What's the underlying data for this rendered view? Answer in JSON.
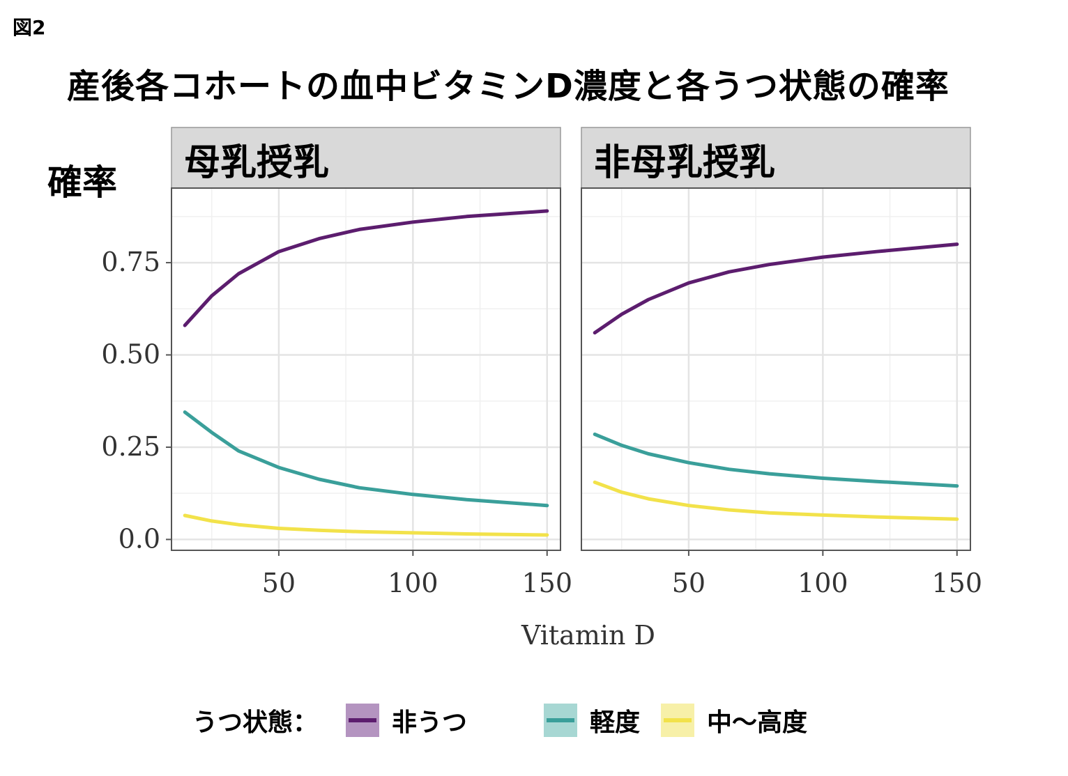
{
  "figure_label": "図2",
  "title": "産後各コホートの血中ビタミンD濃度と各うつ状態の確率",
  "chart_data": {
    "type": "line",
    "ylabel": "確率",
    "xlabel": "Vitamin D",
    "xlim": [
      10,
      155
    ],
    "ylim": [
      -0.02,
      0.92
    ],
    "xticks": [
      50,
      100,
      150
    ],
    "yticks": [
      0.0,
      0.25,
      0.5,
      0.75
    ],
    "ytick_labels": [
      "0.0",
      "0.25",
      "0.50",
      "0.75"
    ],
    "grid": true,
    "legend_position": "bottom",
    "legend_title": "うつ状態：",
    "x": [
      15,
      25,
      35,
      50,
      65,
      80,
      100,
      120,
      150
    ],
    "panels": [
      {
        "title": "母乳授乳",
        "series": [
          {
            "name": "非うつ",
            "color": "#5c1d6e",
            "values": [
              0.58,
              0.66,
              0.72,
              0.78,
              0.815,
              0.84,
              0.86,
              0.875,
              0.89
            ]
          },
          {
            "name": "軽度",
            "color": "#3a9f9a",
            "values": [
              0.345,
              0.29,
              0.24,
              0.195,
              0.163,
              0.14,
              0.122,
              0.108,
              0.092
            ]
          },
          {
            "name": "中～高度",
            "color": "#f2e24a",
            "values": [
              0.065,
              0.05,
              0.04,
              0.03,
              0.025,
              0.021,
              0.018,
              0.015,
              0.012
            ]
          }
        ]
      },
      {
        "title": "非母乳授乳",
        "series": [
          {
            "name": "非うつ",
            "color": "#5c1d6e",
            "values": [
              0.56,
              0.61,
              0.65,
              0.695,
              0.725,
              0.745,
              0.765,
              0.78,
              0.8
            ]
          },
          {
            "name": "軽度",
            "color": "#3a9f9a",
            "values": [
              0.285,
              0.255,
              0.232,
              0.208,
              0.19,
              0.178,
              0.166,
              0.157,
              0.145
            ]
          },
          {
            "name": "中～高度",
            "color": "#f2e24a",
            "values": [
              0.155,
              0.128,
              0.11,
              0.092,
              0.08,
              0.072,
              0.066,
              0.061,
              0.055
            ]
          }
        ]
      }
    ]
  },
  "legend": {
    "title": "うつ状態：",
    "items": [
      {
        "label": "非うつ",
        "color": "#5c1d6e",
        "fill": "#b494c0"
      },
      {
        "label": "軽度",
        "color": "#3a9f9a",
        "fill": "#a7d7d3"
      },
      {
        "label": "中～高度",
        "color": "#f2e24a",
        "fill": "#f7f0a8"
      }
    ]
  }
}
